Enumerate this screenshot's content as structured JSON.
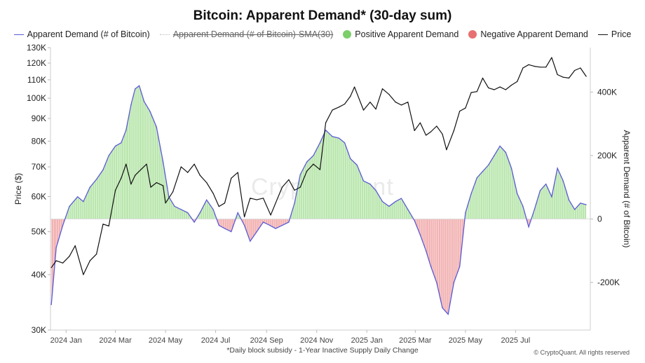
{
  "chart_data": {
    "type": "area",
    "title": "Bitcoin: Apparent Demand* (30-day sum)",
    "footnote": "*Daily block subsidy - 1-Year Inactive Supply Daily Change",
    "copyright": "© CryptoQuant. All rights reserved",
    "watermark": "CryptoQuant",
    "legend": [
      {
        "label": "Apparent Demand (# of Bitcoin)",
        "kind": "line",
        "color": "#5a5ad6"
      },
      {
        "label": "Apparent Demand (# of Bitcoin)-SMA(30)",
        "kind": "line-hidden",
        "color": "#bbbbbb"
      },
      {
        "label": "Positive Apparent Demand",
        "kind": "dot",
        "color": "#7ccf6a"
      },
      {
        "label": "Negative Apparent Demand",
        "kind": "dot",
        "color": "#e86f72"
      },
      {
        "label": "Price",
        "kind": "line",
        "color": "#111111"
      }
    ],
    "y_left": {
      "label": "Price ($)",
      "scale": "log",
      "range": [
        30000,
        130000
      ],
      "ticks": [
        30000,
        40000,
        50000,
        60000,
        70000,
        80000,
        90000,
        100000,
        110000,
        120000,
        130000
      ],
      "tick_labels": [
        "30K",
        "40K",
        "50K",
        "60K",
        "70K",
        "80K",
        "90K",
        "100K",
        "110K",
        "120K",
        "130K"
      ]
    },
    "y_right": {
      "label": "Apparent Demand (# of Bitcoin)",
      "scale": "linear",
      "range": [
        -350000,
        540000
      ],
      "ticks": [
        -200000,
        0,
        200000,
        400000
      ],
      "tick_labels": [
        "-200K",
        "0",
        "200K",
        "400K"
      ]
    },
    "x_axis": {
      "range": [
        "2023-12-13",
        "2025-09-30"
      ],
      "ticks": [
        "2024-01-01",
        "2024-03-01",
        "2024-05-01",
        "2024-07-01",
        "2024-09-01",
        "2024-11-01",
        "2025-01-01",
        "2025-03-01",
        "2025-05-01",
        "2025-07-01"
      ],
      "tick_labels": [
        "2024 Jan",
        "2024 Mar",
        "2024 May",
        "2024 Jul",
        "2024 Sep",
        "2024 Nov",
        "2025 Jan",
        "2025 Mar",
        "2025 May",
        "2025 Jul"
      ]
    },
    "grid": false,
    "legend_placement": "top",
    "colors": {
      "demand_line": "#5a5ad6",
      "positive_fill": "#b9e6ad",
      "negative_fill": "#f2b2b3",
      "price": "#111111"
    },
    "series": [
      {
        "name": "Apparent Demand (# of Bitcoin)",
        "x": [
          "2023-12-14",
          "2023-12-20",
          "2023-12-28",
          "2024-01-05",
          "2024-01-15",
          "2024-01-22",
          "2024-01-30",
          "2024-02-07",
          "2024-02-15",
          "2024-02-22",
          "2024-03-01",
          "2024-03-08",
          "2024-03-14",
          "2024-03-20",
          "2024-03-25",
          "2024-03-30",
          "2024-04-05",
          "2024-04-12",
          "2024-04-20",
          "2024-04-28",
          "2024-05-05",
          "2024-05-12",
          "2024-05-20",
          "2024-05-28",
          "2024-06-05",
          "2024-06-12",
          "2024-06-20",
          "2024-06-28",
          "2024-07-05",
          "2024-07-12",
          "2024-07-20",
          "2024-07-28",
          "2024-08-05",
          "2024-08-12",
          "2024-08-20",
          "2024-08-28",
          "2024-09-05",
          "2024-09-12",
          "2024-09-20",
          "2024-09-28",
          "2024-10-05",
          "2024-10-12",
          "2024-10-20",
          "2024-10-28",
          "2024-11-05",
          "2024-11-12",
          "2024-11-20",
          "2024-11-28",
          "2024-12-05",
          "2024-12-12",
          "2024-12-20",
          "2024-12-28",
          "2025-01-05",
          "2025-01-12",
          "2025-01-20",
          "2025-01-28",
          "2025-02-05",
          "2025-02-12",
          "2025-02-20",
          "2025-02-28",
          "2025-03-07",
          "2025-03-14",
          "2025-03-20",
          "2025-03-27",
          "2025-04-03",
          "2025-04-10",
          "2025-04-17",
          "2025-04-24",
          "2025-05-01",
          "2025-05-08",
          "2025-05-15",
          "2025-05-22",
          "2025-05-29",
          "2025-06-05",
          "2025-06-12",
          "2025-06-19",
          "2025-06-26",
          "2025-07-03",
          "2025-07-10",
          "2025-07-17",
          "2025-07-24",
          "2025-07-31",
          "2025-08-07",
          "2025-08-14",
          "2025-08-21",
          "2025-08-28",
          "2025-09-04",
          "2025-09-11",
          "2025-09-18",
          "2025-09-25"
        ],
        "values": [
          -270000,
          -90000,
          -20000,
          40000,
          70000,
          55000,
          100000,
          125000,
          155000,
          200000,
          230000,
          240000,
          280000,
          360000,
          410000,
          420000,
          370000,
          340000,
          290000,
          180000,
          70000,
          40000,
          30000,
          20000,
          -10000,
          20000,
          60000,
          30000,
          -20000,
          -30000,
          -40000,
          20000,
          -20000,
          -70000,
          -40000,
          -10000,
          -20000,
          -30000,
          -20000,
          -10000,
          50000,
          140000,
          180000,
          200000,
          240000,
          280000,
          260000,
          255000,
          240000,
          190000,
          170000,
          120000,
          110000,
          90000,
          55000,
          40000,
          55000,
          65000,
          30000,
          -5000,
          -50000,
          -100000,
          -150000,
          -200000,
          -280000,
          -300000,
          -200000,
          -150000,
          20000,
          80000,
          130000,
          150000,
          170000,
          200000,
          230000,
          210000,
          160000,
          80000,
          40000,
          -25000,
          30000,
          90000,
          110000,
          70000,
          160000,
          120000,
          60000,
          30000,
          50000,
          45000
        ]
      },
      {
        "name": "Price",
        "x": [
          "2023-12-14",
          "2023-12-20",
          "2023-12-28",
          "2024-01-05",
          "2024-01-12",
          "2024-01-22",
          "2024-01-30",
          "2024-02-07",
          "2024-02-15",
          "2024-02-22",
          "2024-03-01",
          "2024-03-08",
          "2024-03-14",
          "2024-03-20",
          "2024-03-25",
          "2024-04-01",
          "2024-04-08",
          "2024-04-13",
          "2024-04-20",
          "2024-04-28",
          "2024-05-01",
          "2024-05-10",
          "2024-05-20",
          "2024-05-28",
          "2024-06-05",
          "2024-06-12",
          "2024-06-20",
          "2024-06-28",
          "2024-07-05",
          "2024-07-12",
          "2024-07-20",
          "2024-07-28",
          "2024-08-05",
          "2024-08-12",
          "2024-08-20",
          "2024-08-28",
          "2024-09-06",
          "2024-09-12",
          "2024-09-20",
          "2024-09-28",
          "2024-10-05",
          "2024-10-12",
          "2024-10-20",
          "2024-10-28",
          "2024-11-05",
          "2024-11-12",
          "2024-11-20",
          "2024-11-28",
          "2024-12-05",
          "2024-12-12",
          "2024-12-17",
          "2024-12-28",
          "2025-01-05",
          "2025-01-12",
          "2025-01-20",
          "2025-01-28",
          "2025-02-05",
          "2025-02-12",
          "2025-02-20",
          "2025-02-28",
          "2025-03-07",
          "2025-03-14",
          "2025-03-20",
          "2025-03-27",
          "2025-04-03",
          "2025-04-08",
          "2025-04-17",
          "2025-04-24",
          "2025-05-01",
          "2025-05-08",
          "2025-05-15",
          "2025-05-22",
          "2025-05-29",
          "2025-06-05",
          "2025-06-12",
          "2025-06-19",
          "2025-06-26",
          "2025-07-03",
          "2025-07-10",
          "2025-07-17",
          "2025-07-24",
          "2025-07-31",
          "2025-08-07",
          "2025-08-14",
          "2025-08-21",
          "2025-08-28",
          "2025-09-04",
          "2025-09-11",
          "2025-09-18",
          "2025-09-25"
        ],
        "values": [
          41500,
          43000,
          42500,
          44000,
          46500,
          40000,
          43000,
          44500,
          52000,
          51500,
          62000,
          66000,
          71000,
          64000,
          67000,
          69000,
          71000,
          63000,
          64500,
          63500,
          58000,
          61500,
          70000,
          68000,
          71000,
          67000,
          64500,
          61000,
          57000,
          58000,
          66000,
          68000,
          54000,
          59500,
          59000,
          59500,
          54500,
          58000,
          63000,
          65500,
          62000,
          63000,
          68500,
          71000,
          69000,
          88000,
          94000,
          95500,
          97000,
          101000,
          106000,
          94000,
          98000,
          94500,
          105000,
          102000,
          98000,
          96500,
          98000,
          84500,
          88000,
          82500,
          84000,
          86500,
          83000,
          76500,
          84500,
          93500,
          95000,
          103000,
          103500,
          111000,
          105500,
          104500,
          106000,
          104500,
          107000,
          109000,
          117000,
          119000,
          118000,
          117500,
          117500,
          123500,
          113000,
          111500,
          111000,
          115500,
          117000,
          112000
        ]
      }
    ]
  }
}
